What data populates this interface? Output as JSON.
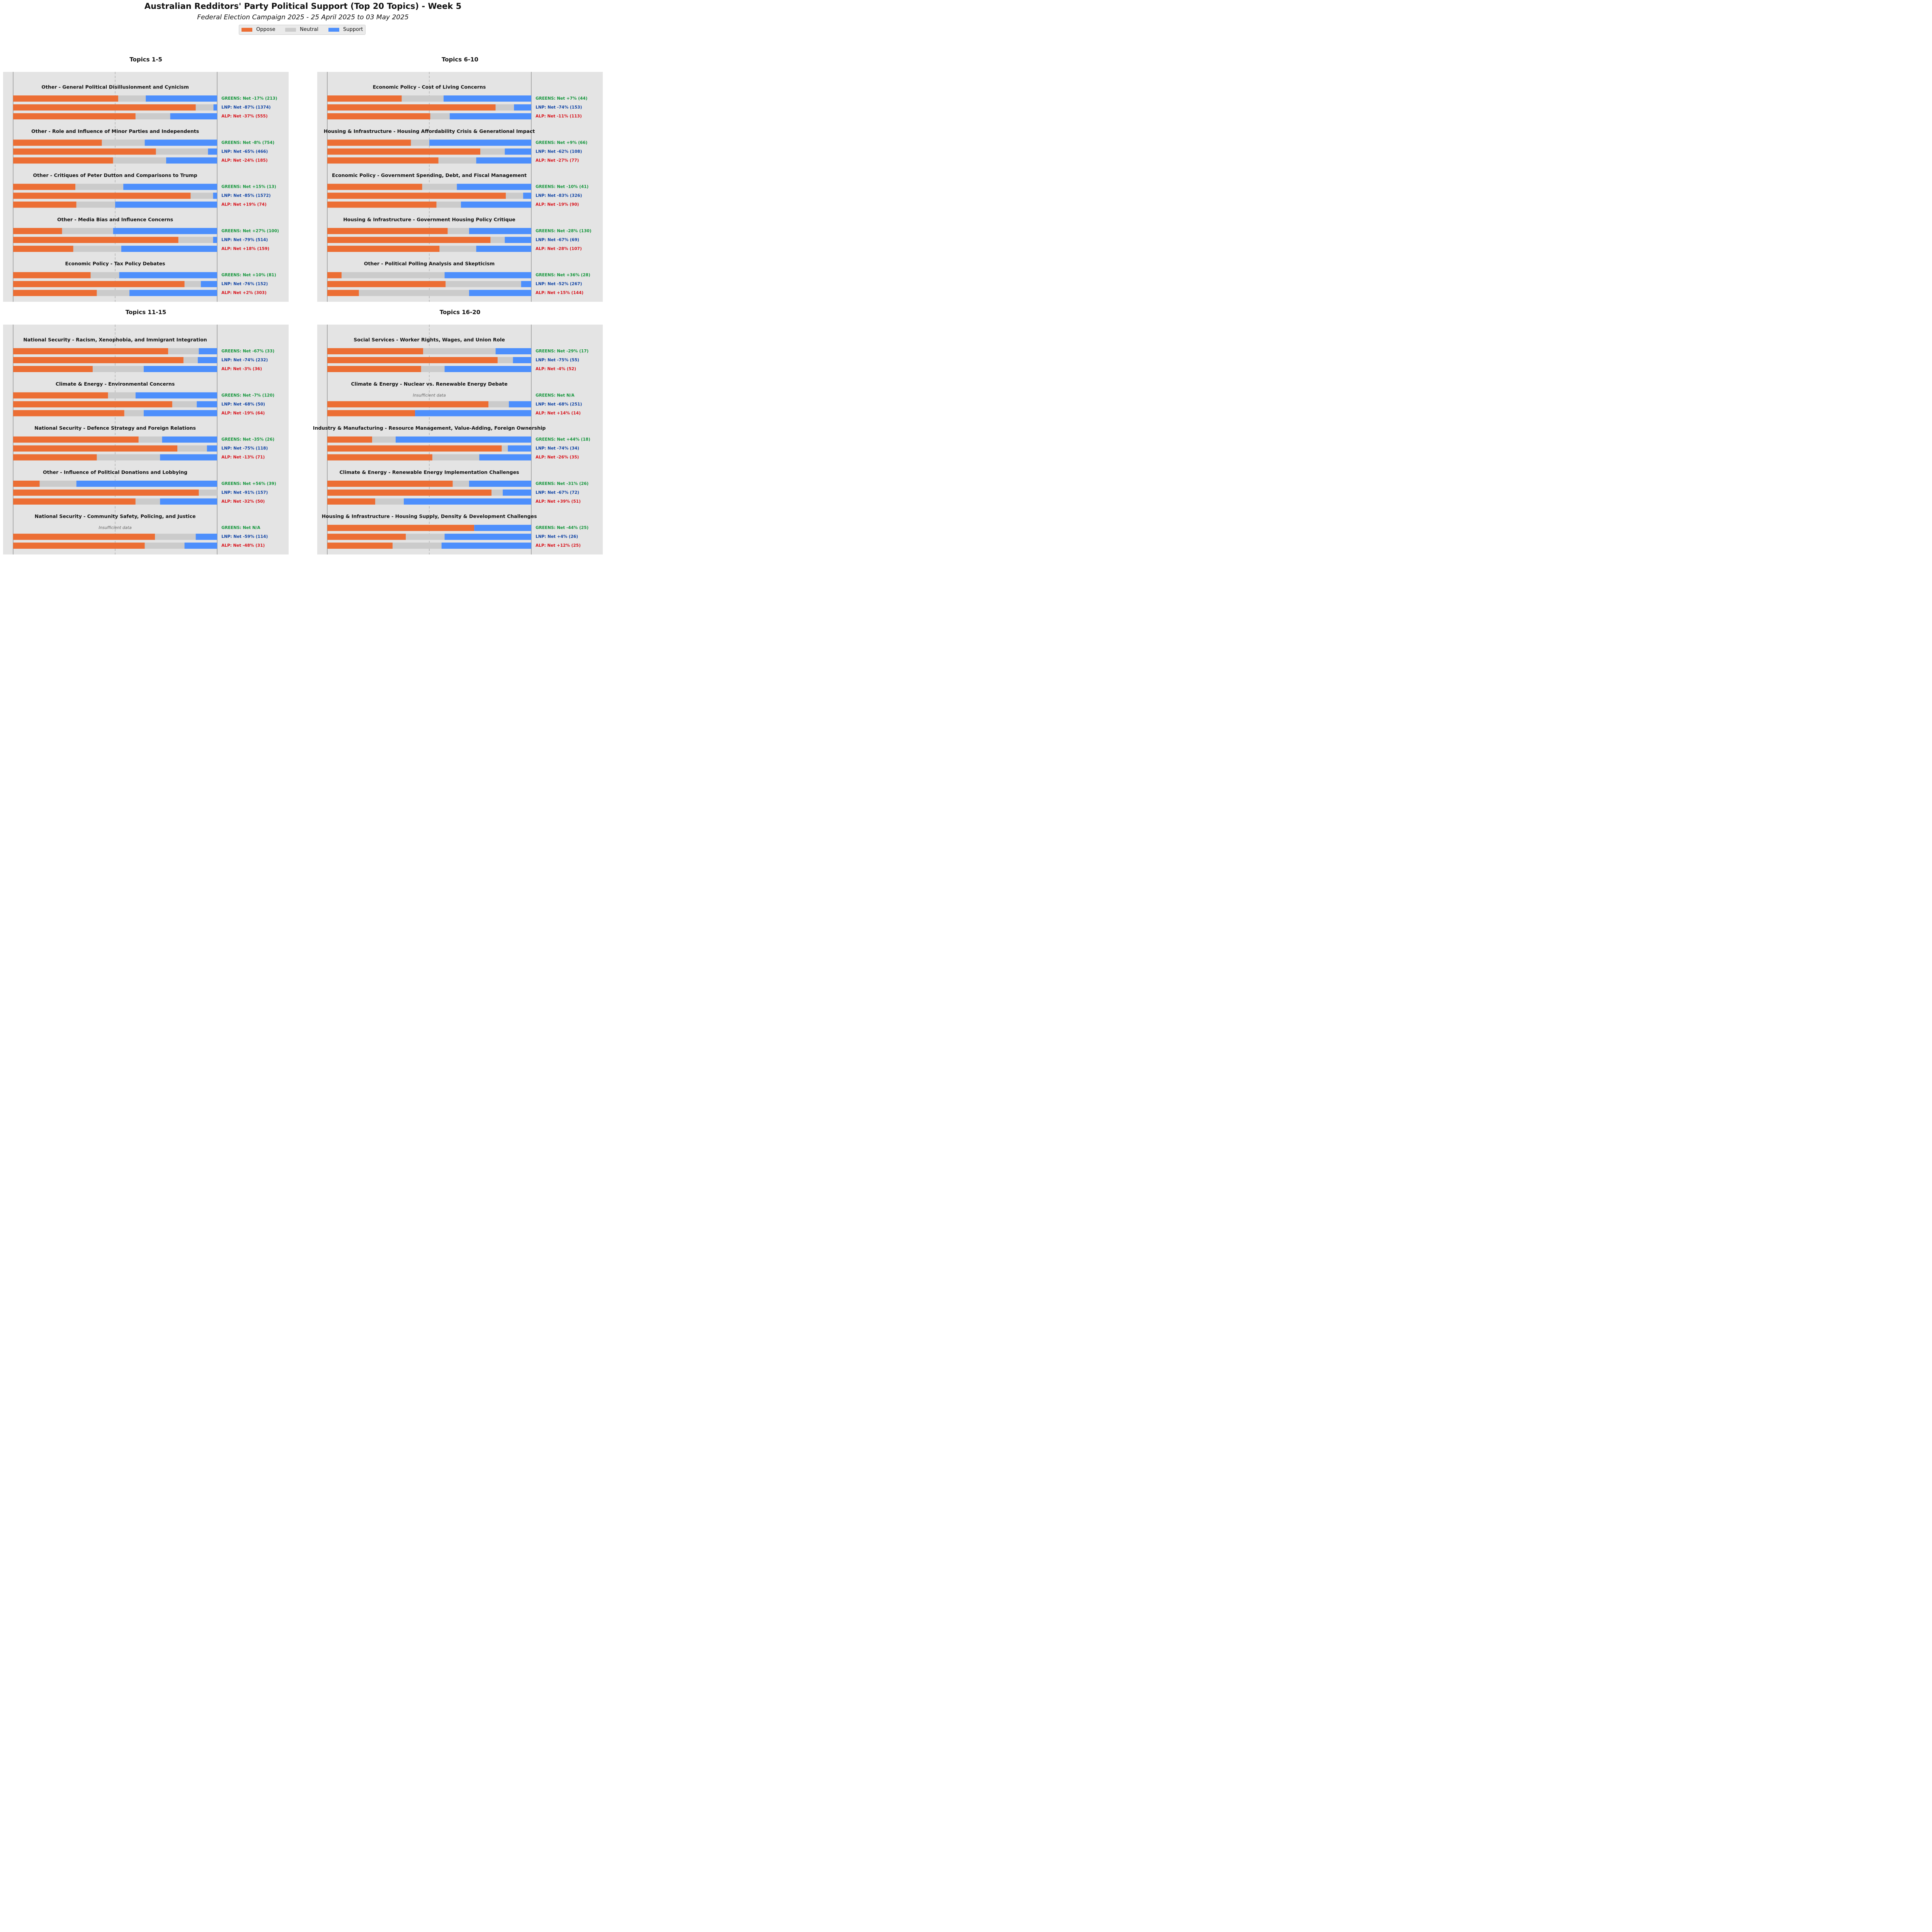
{
  "title": "Australian Redditors' Party Political Support (Top 20 Topics) - Week 5",
  "subtitle": "Federal Election Campaign 2025 - 25 April 2025 to 03 May 2025",
  "legend": [
    {
      "label": "Oppose",
      "color": "#ec6e34"
    },
    {
      "label": "Neutral",
      "color": "#cbcbcb"
    },
    {
      "label": "Support",
      "color": "#4d8ffc"
    }
  ],
  "party_colors": {
    "GREENS": "#15963c",
    "LNP": "#1245a5",
    "ALP": "#d8141c"
  },
  "insufficient_text": "Insufficient data",
  "chart_data": [
    {
      "type": "bar",
      "title": "Topics 1-5",
      "topics": [
        {
          "name": "Other - General Political Disillusionment and Cynicism",
          "parties": [
            {
              "party": "GREENS",
              "label": "GREENS: Net -17% (213)",
              "values": [
                51.5,
                13.5,
                35.0
              ]
            },
            {
              "party": "LNP",
              "label": "LNP: Net -87% (1374)",
              "values": [
                89.5,
                8.7,
                1.8
              ]
            },
            {
              "party": "ALP",
              "label": "ALP: Net -37% (555)",
              "values": [
                60.0,
                17.0,
                23.0
              ]
            }
          ]
        },
        {
          "name": "Other - Role and Influence of Minor Parties and Independents",
          "parties": [
            {
              "party": "GREENS",
              "label": "GREENS: Net -8% (754)",
              "values": [
                43.5,
                21.0,
                35.5
              ]
            },
            {
              "party": "LNP",
              "label": "LNP: Net -65% (466)",
              "values": [
                70.0,
                25.5,
                4.5
              ]
            },
            {
              "party": "ALP",
              "label": "ALP: Net -24% (185)",
              "values": [
                49.0,
                26.0,
                25.0
              ]
            }
          ]
        },
        {
          "name": "Other - Critiques of Peter Dutton and Comparisons to Trump",
          "parties": [
            {
              "party": "GREENS",
              "label": "GREENS: Net +15% (13)",
              "values": [
                30.5,
                23.5,
                46.0
              ]
            },
            {
              "party": "LNP",
              "label": "LNP: Net -85% (1572)",
              "values": [
                87.0,
                11.0,
                2.0
              ]
            },
            {
              "party": "ALP",
              "label": "ALP: Net +19% (74)",
              "values": [
                31.0,
                19.0,
                50.0
              ]
            }
          ]
        },
        {
          "name": "Other - Media Bias and Influence Concerns",
          "parties": [
            {
              "party": "GREENS",
              "label": "GREENS: Net +27% (100)",
              "values": [
                24.0,
                25.0,
                51.0
              ]
            },
            {
              "party": "LNP",
              "label": "LNP: Net -79% (514)",
              "values": [
                81.0,
                17.0,
                2.0
              ]
            },
            {
              "party": "ALP",
              "label": "ALP: Net +18% (159)",
              "values": [
                29.5,
                23.5,
                47.0
              ]
            }
          ]
        },
        {
          "name": "Economic Policy - Tax Policy Debates",
          "parties": [
            {
              "party": "GREENS",
              "label": "GREENS: Net +10% (81)",
              "values": [
                38.0,
                14.0,
                48.0
              ]
            },
            {
              "party": "LNP",
              "label": "LNP: Net -76% (152)",
              "values": [
                84.0,
                8.0,
                8.0
              ]
            },
            {
              "party": "ALP",
              "label": "ALP: Net +2% (303)",
              "values": [
                41.0,
                16.0,
                43.0
              ]
            }
          ]
        }
      ]
    },
    {
      "type": "bar",
      "title": "Topics 6-10",
      "topics": [
        {
          "name": "Economic Policy - Cost of Living Concerns",
          "parties": [
            {
              "party": "GREENS",
              "label": "GREENS: Net +7% (44)",
              "values": [
                36.5,
                20.5,
                43.0
              ]
            },
            {
              "party": "LNP",
              "label": "LNP: Net -74% (153)",
              "values": [
                82.5,
                9.0,
                8.5
              ]
            },
            {
              "party": "ALP",
              "label": "ALP: Net -11% (113)",
              "values": [
                50.5,
                9.5,
                40.0
              ]
            }
          ]
        },
        {
          "name": "Housing & Infrastructure - Housing Affordability Crisis & Generational Impact",
          "parties": [
            {
              "party": "GREENS",
              "label": "GREENS: Net +9% (66)",
              "values": [
                41.0,
                9.0,
                50.0
              ]
            },
            {
              "party": "LNP",
              "label": "LNP: Net -62% (108)",
              "values": [
                75.0,
                12.0,
                13.0
              ]
            },
            {
              "party": "ALP",
              "label": "ALP: Net -27% (77)",
              "values": [
                54.5,
                18.5,
                27.0
              ]
            }
          ]
        },
        {
          "name": "Economic Policy - Government Spending, Debt, and Fiscal Management",
          "parties": [
            {
              "party": "GREENS",
              "label": "GREENS: Net -10% (41)",
              "values": [
                46.5,
                17.0,
                36.5
              ]
            },
            {
              "party": "LNP",
              "label": "LNP: Net -83% (326)",
              "values": [
                87.5,
                8.5,
                4.0
              ]
            },
            {
              "party": "ALP",
              "label": "ALP: Net -19% (90)",
              "values": [
                53.5,
                12.0,
                34.5
              ]
            }
          ]
        },
        {
          "name": "Housing & Infrastructure - Government Housing Policy Critique",
          "parties": [
            {
              "party": "GREENS",
              "label": "GREENS: Net -28% (130)",
              "values": [
                59.0,
                10.5,
                30.5
              ]
            },
            {
              "party": "LNP",
              "label": "LNP: Net -67% (69)",
              "values": [
                80.0,
                7.0,
                13.0
              ]
            },
            {
              "party": "ALP",
              "label": "ALP: Net -28% (107)",
              "values": [
                55.0,
                18.0,
                27.0
              ]
            }
          ]
        },
        {
          "name": "Other - Political Polling Analysis and Skepticism",
          "parties": [
            {
              "party": "GREENS",
              "label": "GREENS: Net +36% (28)",
              "values": [
                7.0,
                50.5,
                42.5
              ]
            },
            {
              "party": "LNP",
              "label": "LNP: Net -52% (267)",
              "values": [
                58.0,
                37.0,
                5.0
              ]
            },
            {
              "party": "ALP",
              "label": "ALP: Net +15% (144)",
              "values": [
                15.5,
                54.0,
                30.5
              ]
            }
          ]
        }
      ]
    },
    {
      "type": "bar",
      "title": "Topics 11-15",
      "topics": [
        {
          "name": "National Security - Racism, Xenophobia, and Immigrant Integration",
          "parties": [
            {
              "party": "GREENS",
              "label": "GREENS: Net -67% (33)",
              "values": [
                76.0,
                15.0,
                9.0
              ]
            },
            {
              "party": "LNP",
              "label": "LNP: Net -74% (232)",
              "values": [
                83.5,
                7.0,
                9.5
              ]
            },
            {
              "party": "ALP",
              "label": "ALP: Net -3% (36)",
              "values": [
                39.0,
                25.0,
                36.0
              ]
            }
          ]
        },
        {
          "name": "Climate & Energy - Environmental Concerns",
          "parties": [
            {
              "party": "GREENS",
              "label": "GREENS: Net -7% (120)",
              "values": [
                46.5,
                13.5,
                40.0
              ]
            },
            {
              "party": "LNP",
              "label": "LNP: Net -68% (50)",
              "values": [
                78.0,
                12.0,
                10.0
              ]
            },
            {
              "party": "ALP",
              "label": "ALP: Net -19% (64)",
              "values": [
                54.5,
                9.5,
                36.0
              ]
            }
          ]
        },
        {
          "name": "National Security - Defence Strategy and Foreign Relations",
          "parties": [
            {
              "party": "GREENS",
              "label": "GREENS: Net -35% (26)",
              "values": [
                61.5,
                11.5,
                27.0
              ]
            },
            {
              "party": "LNP",
              "label": "LNP: Net -75% (118)",
              "values": [
                80.5,
                14.5,
                5.0
              ]
            },
            {
              "party": "ALP",
              "label": "ALP: Net -13% (71)",
              "values": [
                41.0,
                31.0,
                28.0
              ]
            }
          ]
        },
        {
          "name": "Other - Influence of Political Donations and Lobbying",
          "parties": [
            {
              "party": "GREENS",
              "label": "GREENS: Net +56% (39)",
              "values": [
                13.0,
                18.0,
                69.0
              ]
            },
            {
              "party": "LNP",
              "label": "LNP: Net -91% (157)",
              "values": [
                91.0,
                9.0,
                0.0
              ]
            },
            {
              "party": "ALP",
              "label": "ALP: Net -32% (50)",
              "values": [
                60.0,
                12.0,
                28.0
              ]
            }
          ]
        },
        {
          "name": "National Security - Community Safety, Policing, and Justice",
          "parties": [
            {
              "party": "GREENS",
              "label": "GREENS: Net N/A",
              "values": null
            },
            {
              "party": "LNP",
              "label": "LNP: Net -59% (114)",
              "values": [
                69.5,
                20.0,
                10.5
              ]
            },
            {
              "party": "ALP",
              "label": "ALP: Net -48% (31)",
              "values": [
                64.5,
                19.5,
                16.0
              ]
            }
          ]
        }
      ]
    },
    {
      "type": "bar",
      "title": "Topics 16-20",
      "topics": [
        {
          "name": "Social Services - Worker Rights, Wages, and Union Role",
          "parties": [
            {
              "party": "GREENS",
              "label": "GREENS: Net -29% (17)",
              "values": [
                47.0,
                35.5,
                17.5
              ]
            },
            {
              "party": "LNP",
              "label": "LNP: Net -75% (55)",
              "values": [
                83.5,
                7.5,
                9.0
              ]
            },
            {
              "party": "ALP",
              "label": "ALP: Net -4% (52)",
              "values": [
                46.0,
                11.5,
                42.5
              ]
            }
          ]
        },
        {
          "name": "Climate & Energy - Nuclear vs. Renewable Energy Debate",
          "parties": [
            {
              "party": "GREENS",
              "label": "GREENS: Net N/A",
              "values": null
            },
            {
              "party": "LNP",
              "label": "LNP: Net -68% (251)",
              "values": [
                79.0,
                10.0,
                11.0
              ]
            },
            {
              "party": "ALP",
              "label": "ALP: Net +14% (14)",
              "values": [
                43.0,
                0.0,
                57.0
              ]
            }
          ]
        },
        {
          "name": "Industry & Manufacturing - Resource Management, Value-Adding, Foreign Ownership",
          "parties": [
            {
              "party": "GREENS",
              "label": "GREENS: Net +44% (18)",
              "values": [
                22.0,
                11.5,
                66.5
              ]
            },
            {
              "party": "LNP",
              "label": "LNP: Net -74% (34)",
              "values": [
                85.5,
                3.0,
                11.5
              ]
            },
            {
              "party": "ALP",
              "label": "ALP: Net -26% (35)",
              "values": [
                51.5,
                23.0,
                25.5
              ]
            }
          ]
        },
        {
          "name": "Climate & Energy - Renewable Energy Implementation Challenges",
          "parties": [
            {
              "party": "GREENS",
              "label": "GREENS: Net -31% (26)",
              "values": [
                61.5,
                8.0,
                30.5
              ]
            },
            {
              "party": "LNP",
              "label": "LNP: Net -67% (72)",
              "values": [
                80.5,
                5.5,
                14.0
              ]
            },
            {
              "party": "ALP",
              "label": "ALP: Net +39% (51)",
              "values": [
                23.5,
                14.0,
                62.5
              ]
            }
          ]
        },
        {
          "name": "Housing & Infrastructure - Housing Supply, Density & Development Challenges",
          "parties": [
            {
              "party": "GREENS",
              "label": "GREENS: Net -44% (25)",
              "values": [
                72.0,
                0.0,
                28.0
              ]
            },
            {
              "party": "LNP",
              "label": "LNP: Net +4% (26)",
              "values": [
                38.5,
                19.0,
                42.5
              ]
            },
            {
              "party": "ALP",
              "label": "ALP: Net +12% (25)",
              "values": [
                32.0,
                24.0,
                44.0
              ]
            }
          ]
        }
      ]
    }
  ]
}
